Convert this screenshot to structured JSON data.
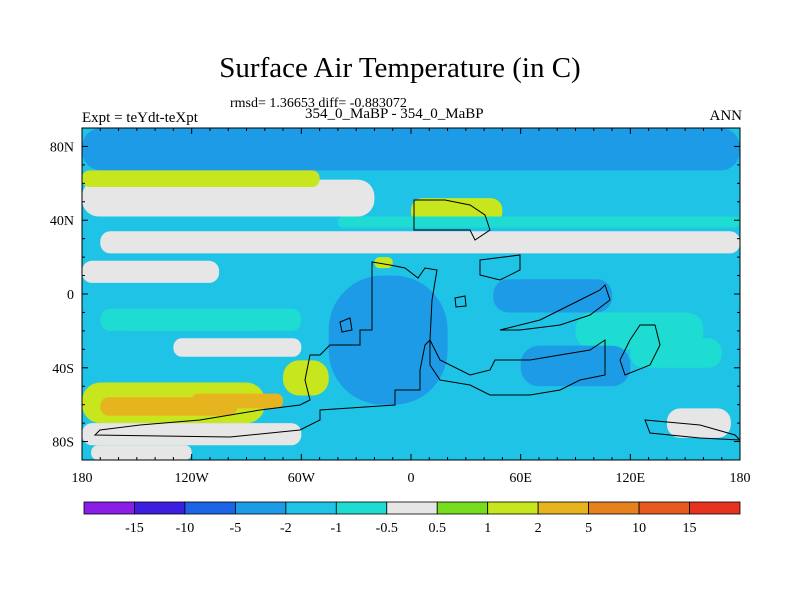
{
  "chart_data": {
    "type": "heatmap",
    "title": "Surface Air Temperature (in C)",
    "stats": "rmsd= 1.36653 diff= -0.883072",
    "subtitle": "354_0_MaBP - 354_0_MaBP",
    "left_label": "Expt = teYdt-teXpt",
    "right_label": "ANN",
    "xlim": [
      -180,
      180
    ],
    "ylim": [
      -90,
      90
    ],
    "x_ticks": [
      {
        "value": -180,
        "label": "180"
      },
      {
        "value": -120,
        "label": "120W"
      },
      {
        "value": -60,
        "label": "60W"
      },
      {
        "value": 0,
        "label": "0"
      },
      {
        "value": 60,
        "label": "60E"
      },
      {
        "value": 120,
        "label": "120E"
      },
      {
        "value": 180,
        "label": "180"
      }
    ],
    "y_ticks": [
      {
        "value": 80,
        "label": "80N"
      },
      {
        "value": 40,
        "label": "40N"
      },
      {
        "value": 0,
        "label": "0"
      },
      {
        "value": -40,
        "label": "40S"
      },
      {
        "value": -80,
        "label": "80S"
      }
    ],
    "colorbar": {
      "colors": [
        "#8a1ee6",
        "#3c1ee0",
        "#1e64e6",
        "#1e9be6",
        "#1ec3e6",
        "#1edcd2",
        "#e6e6e6",
        "#78dc1e",
        "#c8e61e",
        "#e6b41e",
        "#e6821e",
        "#e65a1e",
        "#e6321e"
      ],
      "labels": [
        "-15",
        "-10",
        "-5",
        "-2",
        "-1",
        "-0.5",
        "0.5",
        "1",
        "2",
        "5",
        "10",
        "15"
      ]
    },
    "base_field_value": -1.5,
    "regions": [
      {
        "value": -3,
        "lon": [
          -180,
          180
        ],
        "lat": [
          67,
          90
        ]
      },
      {
        "value": 0,
        "lon": [
          -180,
          -20
        ],
        "lat": [
          42,
          62
        ]
      },
      {
        "value": 0,
        "lon": [
          -170,
          180
        ],
        "lat": [
          22,
          34
        ]
      },
      {
        "value": 1.5,
        "lon": [
          -180,
          -50
        ],
        "lat": [
          58,
          67
        ]
      },
      {
        "value": 1.5,
        "lon": [
          0,
          50
        ],
        "lat": [
          38,
          52
        ]
      },
      {
        "value": -0.7,
        "lon": [
          -40,
          180
        ],
        "lat": [
          36,
          42
        ]
      },
      {
        "value": 0,
        "lon": [
          -180,
          -105
        ],
        "lat": [
          6,
          18
        ]
      },
      {
        "value": 0,
        "lon": [
          -130,
          -60
        ],
        "lat": [
          -34,
          -24
        ]
      },
      {
        "value": -0.7,
        "lon": [
          -170,
          -60
        ],
        "lat": [
          -20,
          -8
        ]
      },
      {
        "value": -0.7,
        "lon": [
          90,
          160
        ],
        "lat": [
          -30,
          -10
        ]
      },
      {
        "value": 1.5,
        "lon": [
          -180,
          -80
        ],
        "lat": [
          -70,
          -48
        ]
      },
      {
        "value": 3.5,
        "lon": [
          -170,
          -95
        ],
        "lat": [
          -66,
          -56
        ]
      },
      {
        "value": 3.5,
        "lon": [
          -120,
          -70
        ],
        "lat": [
          -62,
          -54
        ]
      },
      {
        "value": 0,
        "lon": [
          -180,
          -60
        ],
        "lat": [
          -82,
          -70
        ]
      },
      {
        "value": 1.5,
        "lon": [
          -70,
          -45
        ],
        "lat": [
          -55,
          -36
        ]
      },
      {
        "value": -3,
        "lon": [
          -45,
          20
        ],
        "lat": [
          -60,
          10
        ]
      },
      {
        "value": -3,
        "lon": [
          45,
          110
        ],
        "lat": [
          -10,
          8
        ]
      },
      {
        "value": -3,
        "lon": [
          60,
          120
        ],
        "lat": [
          -50,
          -28
        ]
      },
      {
        "value": -0.7,
        "lon": [
          120,
          170
        ],
        "lat": [
          -40,
          -24
        ]
      },
      {
        "value": 0,
        "lon": [
          140,
          175
        ],
        "lat": [
          -78,
          -62
        ]
      },
      {
        "value": 0,
        "lon": [
          -175,
          -120
        ],
        "lat": [
          -90,
          -82
        ]
      },
      {
        "value": 1.5,
        "lon": [
          -20,
          -10
        ],
        "lat": [
          14,
          20
        ]
      }
    ]
  }
}
